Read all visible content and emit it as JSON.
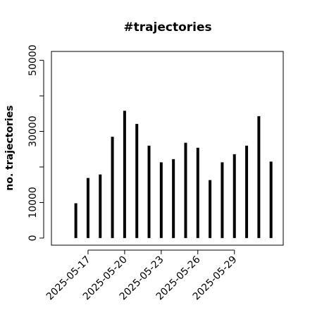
{
  "chart_data": {
    "type": "bar",
    "title": "#trajectories",
    "y_label": "no. trajectories",
    "x": [
      "2025-05-16",
      "2025-05-17",
      "2025-05-18",
      "2025-05-19",
      "2025-05-20",
      "2025-05-21",
      "2025-05-22",
      "2025-05-23",
      "2025-05-24",
      "2025-05-25",
      "2025-05-26",
      "2025-05-27",
      "2025-05-28",
      "2025-05-29",
      "2025-05-30",
      "2025-05-31",
      "2025-06-01"
    ],
    "values": [
      9800,
      16900,
      17900,
      28500,
      35800,
      32100,
      26000,
      21300,
      22200,
      26800,
      25400,
      16300,
      21300,
      23600,
      26000,
      34300,
      21500
    ],
    "color": "#000000",
    "xlim": [
      "2025-05-14",
      "2025-06-02"
    ],
    "xticks": [
      "2025-05-17",
      "2025-05-20",
      "2025-05-23",
      "2025-05-26",
      "2025-05-29"
    ],
    "ylim": [
      -2000,
      52500
    ],
    "yticks": [
      0,
      10000,
      {
        "value": 20000,
        "label": null
      },
      30000,
      {
        "value": 40000,
        "label": null
      },
      50000
    ]
  }
}
